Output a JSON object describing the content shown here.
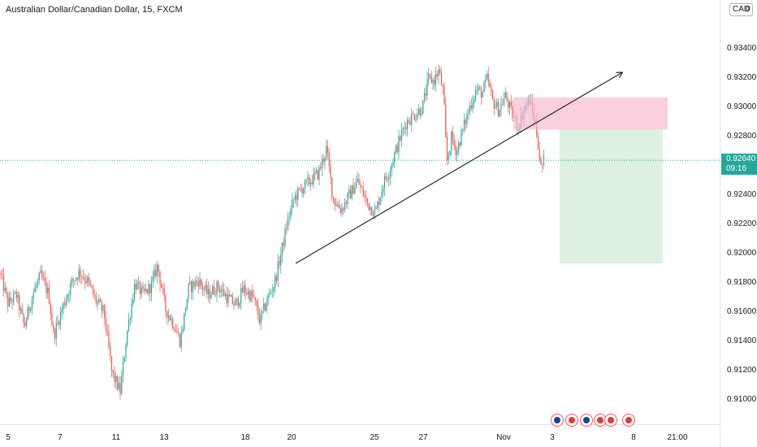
{
  "header": {
    "title": "Australian Dollar/Canadian Dollar, 15, FXCM"
  },
  "price_axis": {
    "currency_label": "CAD",
    "currency_suffix": "0",
    "ticks": [
      "0.93400",
      "0.93200",
      "0.93000",
      "0.92800",
      "0.92400",
      "0.92200",
      "0.92000",
      "0.91800",
      "0.91600",
      "0.91400",
      "0.91200",
      "0.91000"
    ]
  },
  "last_price": {
    "value": "0.92640",
    "countdown": "09:16",
    "color": "#26a69a"
  },
  "time_axis": {
    "ticks": [
      "5",
      "7",
      "11",
      "13",
      "18",
      "20",
      "25",
      "27",
      "Nov",
      "3",
      "8",
      "21:00"
    ]
  },
  "events": {
    "icons": [
      "au-flag-icon",
      "ca-flag-icon",
      "au-flag-icon",
      "ca-flag-icon",
      "ca-flag-icon",
      "ca-flag-icon"
    ]
  },
  "chart_data": {
    "type": "candlestick",
    "symbol": "Australian Dollar/Canadian Dollar",
    "interval": "15",
    "source": "FXCM",
    "ylim": [
      0.9088,
      0.9368
    ],
    "colors": {
      "up": "#26a69a",
      "down": "#ef5350",
      "stop_zone": "#f8bbd0",
      "target_zone": "#c8e6c9",
      "trendline": "#131722"
    },
    "anchors": [
      [
        0,
        0.9187
      ],
      [
        10,
        0.9166
      ],
      [
        20,
        0.9172
      ],
      [
        30,
        0.915
      ],
      [
        40,
        0.9172
      ],
      [
        50,
        0.9185
      ],
      [
        60,
        0.9172
      ],
      [
        66,
        0.9144
      ],
      [
        78,
        0.9165
      ],
      [
        88,
        0.918
      ],
      [
        98,
        0.9188
      ],
      [
        108,
        0.9181
      ],
      [
        118,
        0.9168
      ],
      [
        128,
        0.916
      ],
      [
        138,
        0.9118
      ],
      [
        148,
        0.9106
      ],
      [
        156,
        0.9145
      ],
      [
        166,
        0.918
      ],
      [
        176,
        0.9172
      ],
      [
        186,
        0.9178
      ],
      [
        194,
        0.9192
      ],
      [
        204,
        0.9162
      ],
      [
        214,
        0.9152
      ],
      [
        222,
        0.914
      ],
      [
        232,
        0.9176
      ],
      [
        244,
        0.9182
      ],
      [
        256,
        0.9172
      ],
      [
        268,
        0.9178
      ],
      [
        280,
        0.917
      ],
      [
        290,
        0.9165
      ],
      [
        300,
        0.9176
      ],
      [
        312,
        0.917
      ],
      [
        320,
        0.9154
      ],
      [
        330,
        0.917
      ],
      [
        338,
        0.918
      ],
      [
        346,
        0.92
      ],
      [
        354,
        0.9222
      ],
      [
        362,
        0.9238
      ],
      [
        372,
        0.9245
      ],
      [
        382,
        0.925
      ],
      [
        392,
        0.9255
      ],
      [
        402,
        0.9272
      ],
      [
        410,
        0.9238
      ],
      [
        420,
        0.923
      ],
      [
        430,
        0.924
      ],
      [
        440,
        0.925
      ],
      [
        452,
        0.9235
      ],
      [
        462,
        0.9228
      ],
      [
        472,
        0.9248
      ],
      [
        480,
        0.9258
      ],
      [
        490,
        0.9275
      ],
      [
        500,
        0.929
      ],
      [
        510,
        0.9295
      ],
      [
        520,
        0.93
      ],
      [
        528,
        0.932
      ],
      [
        534,
        0.9318
      ],
      [
        540,
        0.9325
      ],
      [
        546,
        0.931
      ],
      [
        550,
        0.9262
      ],
      [
        556,
        0.928
      ],
      [
        562,
        0.927
      ],
      [
        570,
        0.9285
      ],
      [
        578,
        0.93
      ],
      [
        586,
        0.9312
      ],
      [
        594,
        0.931
      ],
      [
        600,
        0.932
      ],
      [
        606,
        0.9305
      ],
      [
        614,
        0.9298
      ],
      [
        622,
        0.9308
      ],
      [
        630,
        0.9296
      ],
      [
        638,
        0.9287
      ],
      [
        646,
        0.93
      ],
      [
        652,
        0.9305
      ],
      [
        658,
        0.9292
      ],
      [
        662,
        0.9278
      ],
      [
        666,
        0.9258
      ],
      [
        670,
        0.9264
      ]
    ],
    "trendline": {
      "start": [
        364,
        0.91935
      ],
      "end": [
        766,
        0.9324
      ],
      "arrow": true
    },
    "stop_zone": {
      "x1": 632,
      "x2": 822,
      "top": 0.9307,
      "bottom": 0.9285
    },
    "target_zone": {
      "x1": 689,
      "x2": 816,
      "top": 0.9285,
      "bottom": 0.91935
    }
  }
}
